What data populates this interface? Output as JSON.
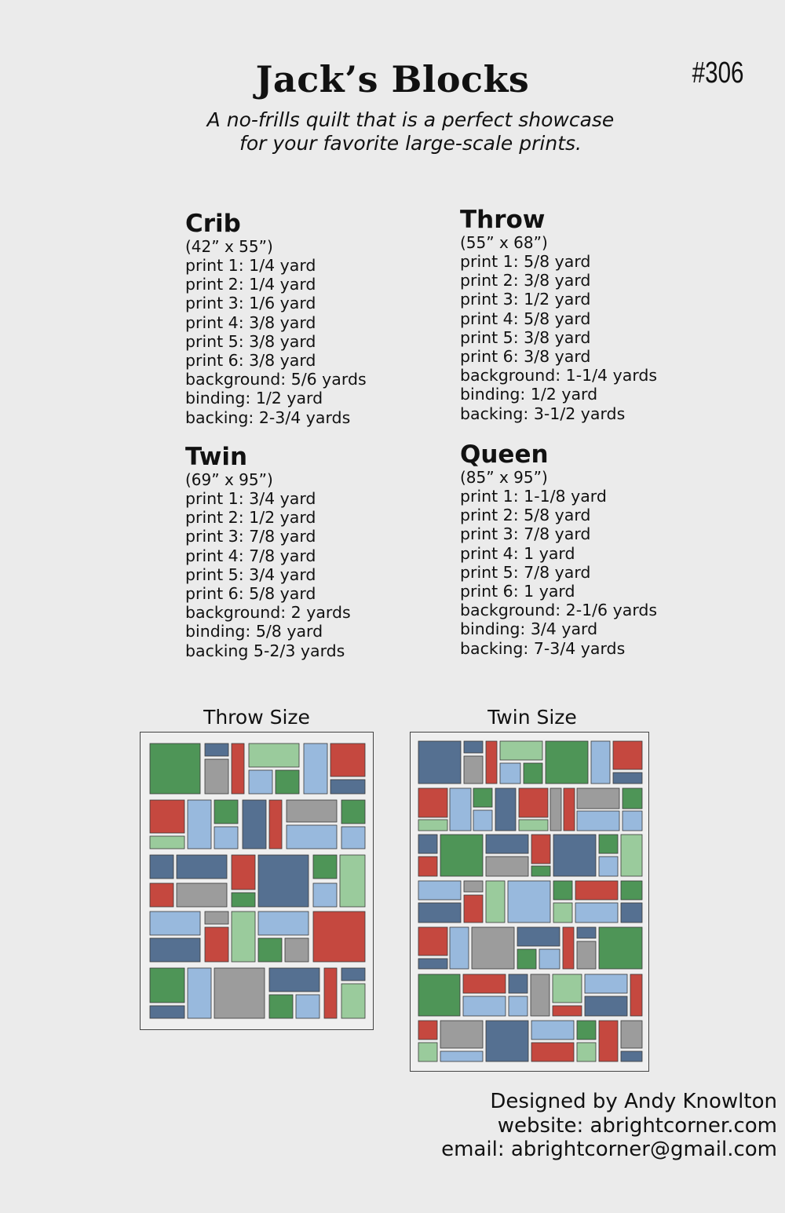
{
  "header": {
    "title": "Jack’s Blocks",
    "pattern_number": "#306",
    "subtitle_line1": "A no-frills quilt that is a perfect showcase",
    "subtitle_line2": "for your favorite large-scale prints."
  },
  "sizes": {
    "crib": {
      "name": "Crib",
      "dimensions": "(42” x 55”)",
      "items": [
        "print 1:  1/4 yard",
        "print 2:  1/4 yard",
        "print 3:  1/6 yard",
        "print 4:  3/8 yard",
        "print 5:  3/8 yard",
        "print 6:  3/8 yard",
        "background:  5/6 yards",
        "binding:  1/2 yard",
        "backing:  2-3/4 yards"
      ]
    },
    "throw": {
      "name": "Throw",
      "dimensions": "(55” x 68”)",
      "items": [
        "print 1:  5/8 yard",
        "print 2:  3/8 yard",
        "print 3:  1/2 yard",
        "print 4:  5/8 yard",
        "print 5:  3/8 yard",
        "print 6:  3/8 yard",
        "background:  1-1/4 yards",
        "binding:  1/2 yard",
        "backing:  3-1/2 yards"
      ]
    },
    "twin": {
      "name": "Twin",
      "dimensions": "(69” x 95”)",
      "items": [
        "print 1:  3/4 yard",
        "print 2:  1/2 yard",
        "print 3:  7/8 yard",
        "print 4:  7/8 yard",
        "print 5:  3/4 yard",
        "print 6:  5/8 yard",
        "background:  2 yards",
        "binding:  5/8 yard",
        "backing 5-2/3 yards"
      ]
    },
    "queen": {
      "name": "Queen",
      "dimensions": "(85” x 95”)",
      "items": [
        "print 1:  1-1/8 yard",
        "print 2:  5/8 yard",
        "print 3:  7/8 yard",
        "print 4:  1 yard",
        "print 5:  7/8 yard",
        "print 6:  1 yard",
        "background:  2-1/6 yards",
        "binding:  3/4 yard",
        "backing:  7-3/4 yards"
      ]
    }
  },
  "illustrations": {
    "throw_caption": "Throw Size",
    "twin_caption": "Twin Size",
    "colors": {
      "green": "#4e9557",
      "blue": "#557091",
      "lightblue": "#98b9dd",
      "red": "#c5483f",
      "gray": "#9c9c9c",
      "lightgreen": "#9acb9c"
    }
  },
  "footer": {
    "designer": "Designed by Andy Knowlton",
    "website": "website:  abrightcorner.com",
    "email": "email:  abrightcorner@gmail.com"
  }
}
